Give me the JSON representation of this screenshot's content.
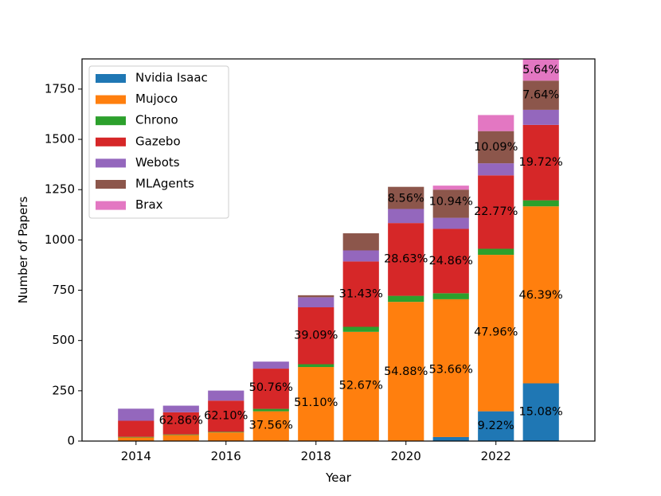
{
  "chart_data": {
    "type": "bar",
    "stacked": true,
    "xlabel": "Year",
    "ylabel": "Number of Papers",
    "title": "",
    "xlim": [
      2012.8,
      2024.2
    ],
    "ylim": [
      0,
      1900
    ],
    "x_ticks": [
      2014,
      2016,
      2018,
      2020,
      2022
    ],
    "y_ticks": [
      0,
      250,
      500,
      750,
      1000,
      1250,
      1500,
      1750
    ],
    "grid": false,
    "legend_position": "top-left",
    "categories": [
      2014,
      2015,
      2016,
      2017,
      2018,
      2019,
      2020,
      2021,
      2022,
      2023
    ],
    "series": [
      {
        "name": "Nvidia Isaac",
        "color": "#1f77b4",
        "values": [
          0,
          0,
          0,
          0,
          0,
          0,
          0,
          20,
          148,
          287
        ]
      },
      {
        "name": "Mujoco",
        "color": "#ff7f0e",
        "values": [
          18,
          30,
          43,
          148,
          368,
          543,
          692,
          685,
          778,
          880
        ]
      },
      {
        "name": "Chrono",
        "color": "#2ca02c",
        "values": [
          3,
          3,
          3,
          12,
          14,
          25,
          30,
          30,
          30,
          30
        ]
      },
      {
        "name": "Gazebo",
        "color": "#d62728",
        "values": [
          80,
          110,
          155,
          200,
          283,
          325,
          362,
          320,
          365,
          375
        ]
      },
      {
        "name": "Webots",
        "color": "#9467bd",
        "values": [
          60,
          33,
          50,
          35,
          50,
          55,
          70,
          55,
          60,
          75
        ]
      },
      {
        "name": "MLAgents",
        "color": "#8c564b",
        "values": [
          0,
          0,
          0,
          0,
          10,
          85,
          110,
          140,
          160,
          145
        ]
      },
      {
        "name": "Brax",
        "color": "#e377c2",
        "values": [
          0,
          0,
          0,
          0,
          0,
          0,
          0,
          20,
          80,
          107
        ]
      }
    ],
    "annotations": [
      {
        "year": 2015,
        "y": 100,
        "text": "62.86%"
      },
      {
        "year": 2016,
        "y": 125,
        "text": "62.10%"
      },
      {
        "year": 2017,
        "y": 78,
        "text": "37.56%"
      },
      {
        "year": 2017,
        "y": 265,
        "text": "50.76%"
      },
      {
        "year": 2018,
        "y": 190,
        "text": "51.10%"
      },
      {
        "year": 2018,
        "y": 525,
        "text": "39.09%"
      },
      {
        "year": 2019,
        "y": 275,
        "text": "52.67%"
      },
      {
        "year": 2019,
        "y": 730,
        "text": "31.43%"
      },
      {
        "year": 2020,
        "y": 345,
        "text": "54.88%"
      },
      {
        "year": 2020,
        "y": 905,
        "text": "28.63%"
      },
      {
        "year": 2020,
        "y": 1205,
        "text": "8.56%"
      },
      {
        "year": 2021,
        "y": 355,
        "text": "53.66%"
      },
      {
        "year": 2021,
        "y": 895,
        "text": "24.86%"
      },
      {
        "year": 2021,
        "y": 1190,
        "text": "10.94%"
      },
      {
        "year": 2022,
        "y": 75,
        "text": "9.22%"
      },
      {
        "year": 2022,
        "y": 540,
        "text": "47.96%"
      },
      {
        "year": 2022,
        "y": 1140,
        "text": "22.77%"
      },
      {
        "year": 2022,
        "y": 1460,
        "text": "10.09%"
      },
      {
        "year": 2023,
        "y": 145,
        "text": "15.08%"
      },
      {
        "year": 2023,
        "y": 725,
        "text": "46.39%"
      },
      {
        "year": 2023,
        "y": 1385,
        "text": "19.72%"
      },
      {
        "year": 2023,
        "y": 1720,
        "text": "7.64%"
      },
      {
        "year": 2023,
        "y": 1845,
        "text": "5.64%"
      }
    ]
  }
}
